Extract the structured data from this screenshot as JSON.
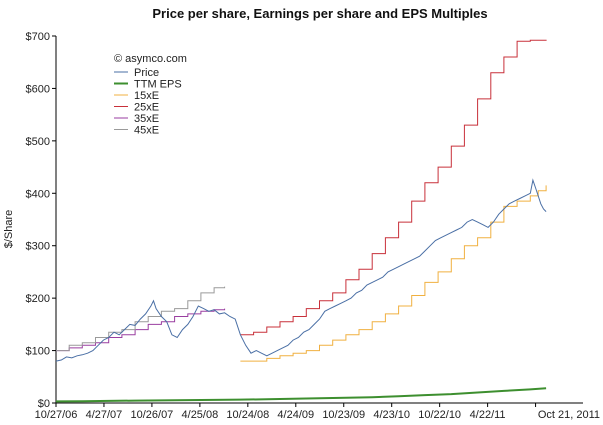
{
  "chart_data": {
    "type": "line",
    "title": "Price per share, Earnings per share and EPS Multiples",
    "ylabel": "$/Share",
    "xlabel": "",
    "copyright": "© asymco.com",
    "ylim": [
      0,
      700
    ],
    "xlim": [
      0,
      2000
    ],
    "yticks": [
      {
        "value": 0,
        "label": "$0"
      },
      {
        "value": 100,
        "label": "$100"
      },
      {
        "value": 200,
        "label": "$200"
      },
      {
        "value": 300,
        "label": "$300"
      },
      {
        "value": 400,
        "label": "$400"
      },
      {
        "value": 500,
        "label": "$500"
      },
      {
        "value": 600,
        "label": "$600"
      },
      {
        "value": 700,
        "label": "$700"
      }
    ],
    "xticks": [
      {
        "value": 0,
        "label": "10/27/06"
      },
      {
        "value": 182,
        "label": "4/27/07"
      },
      {
        "value": 364,
        "label": "10/26/07"
      },
      {
        "value": 546,
        "label": "4/25/08"
      },
      {
        "value": 728,
        "label": "10/24/08"
      },
      {
        "value": 910,
        "label": "4/24/09"
      },
      {
        "value": 1092,
        "label": "10/23/09"
      },
      {
        "value": 1274,
        "label": "4/23/10"
      },
      {
        "value": 1456,
        "label": "10/22/10"
      },
      {
        "value": 1638,
        "label": "4/22/11"
      },
      {
        "value": 1820,
        "label": "Oct 21, 2011"
      }
    ],
    "legend": "top-left",
    "grid": false,
    "series": [
      {
        "name": "Price",
        "color": "#4a6fa5",
        "points": [
          [
            0,
            80
          ],
          [
            20,
            82
          ],
          [
            40,
            88
          ],
          [
            60,
            86
          ],
          [
            80,
            90
          ],
          [
            100,
            92
          ],
          [
            120,
            95
          ],
          [
            140,
            100
          ],
          [
            160,
            110
          ],
          [
            180,
            120
          ],
          [
            200,
            125
          ],
          [
            220,
            135
          ],
          [
            240,
            130
          ],
          [
            260,
            140
          ],
          [
            280,
            150
          ],
          [
            300,
            148
          ],
          [
            320,
            160
          ],
          [
            340,
            170
          ],
          [
            360,
            185
          ],
          [
            370,
            195
          ],
          [
            380,
            180
          ],
          [
            400,
            165
          ],
          [
            420,
            155
          ],
          [
            440,
            130
          ],
          [
            460,
            125
          ],
          [
            480,
            140
          ],
          [
            500,
            150
          ],
          [
            520,
            165
          ],
          [
            540,
            185
          ],
          [
            560,
            180
          ],
          [
            580,
            175
          ],
          [
            600,
            178
          ],
          [
            620,
            170
          ],
          [
            640,
            172
          ],
          [
            660,
            165
          ],
          [
            680,
            160
          ],
          [
            700,
            130
          ],
          [
            720,
            110
          ],
          [
            740,
            95
          ],
          [
            760,
            100
          ],
          [
            780,
            95
          ],
          [
            800,
            90
          ],
          [
            820,
            95
          ],
          [
            840,
            100
          ],
          [
            860,
            105
          ],
          [
            880,
            110
          ],
          [
            900,
            120
          ],
          [
            920,
            125
          ],
          [
            940,
            135
          ],
          [
            960,
            140
          ],
          [
            980,
            150
          ],
          [
            1000,
            160
          ],
          [
            1020,
            175
          ],
          [
            1040,
            180
          ],
          [
            1060,
            185
          ],
          [
            1080,
            190
          ],
          [
            1100,
            195
          ],
          [
            1120,
            200
          ],
          [
            1140,
            210
          ],
          [
            1160,
            215
          ],
          [
            1180,
            225
          ],
          [
            1200,
            230
          ],
          [
            1220,
            235
          ],
          [
            1240,
            240
          ],
          [
            1260,
            250
          ],
          [
            1280,
            255
          ],
          [
            1300,
            260
          ],
          [
            1320,
            265
          ],
          [
            1340,
            270
          ],
          [
            1360,
            275
          ],
          [
            1380,
            280
          ],
          [
            1400,
            290
          ],
          [
            1420,
            300
          ],
          [
            1440,
            310
          ],
          [
            1460,
            315
          ],
          [
            1480,
            320
          ],
          [
            1500,
            325
          ],
          [
            1520,
            330
          ],
          [
            1540,
            335
          ],
          [
            1560,
            345
          ],
          [
            1580,
            350
          ],
          [
            1600,
            345
          ],
          [
            1620,
            340
          ],
          [
            1640,
            335
          ],
          [
            1660,
            345
          ],
          [
            1680,
            360
          ],
          [
            1700,
            370
          ],
          [
            1720,
            380
          ],
          [
            1740,
            385
          ],
          [
            1760,
            390
          ],
          [
            1780,
            395
          ],
          [
            1800,
            400
          ],
          [
            1810,
            425
          ],
          [
            1820,
            410
          ],
          [
            1830,
            395
          ],
          [
            1840,
            380
          ],
          [
            1850,
            370
          ],
          [
            1860,
            365
          ]
        ]
      },
      {
        "name": "TTM EPS",
        "color": "#3d8f2f",
        "points": [
          [
            0,
            3
          ],
          [
            100,
            3.5
          ],
          [
            200,
            4
          ],
          [
            300,
            4.5
          ],
          [
            400,
            5
          ],
          [
            500,
            5.5
          ],
          [
            600,
            6
          ],
          [
            700,
            6.5
          ],
          [
            800,
            7
          ],
          [
            900,
            8
          ],
          [
            1000,
            9
          ],
          [
            1100,
            10
          ],
          [
            1200,
            11
          ],
          [
            1300,
            13
          ],
          [
            1400,
            15
          ],
          [
            1500,
            17
          ],
          [
            1600,
            20
          ],
          [
            1700,
            23
          ],
          [
            1800,
            26
          ],
          [
            1860,
            28
          ]
        ]
      },
      {
        "name": "15xE",
        "color": "#f0b040",
        "points": [
          [
            700,
            80
          ],
          [
            800,
            85
          ],
          [
            850,
            90
          ],
          [
            900,
            95
          ],
          [
            950,
            100
          ],
          [
            1000,
            110
          ],
          [
            1050,
            120
          ],
          [
            1100,
            130
          ],
          [
            1150,
            140
          ],
          [
            1200,
            155
          ],
          [
            1250,
            170
          ],
          [
            1300,
            185
          ],
          [
            1350,
            205
          ],
          [
            1400,
            230
          ],
          [
            1450,
            250
          ],
          [
            1500,
            275
          ],
          [
            1550,
            300
          ],
          [
            1600,
            315
          ],
          [
            1650,
            345
          ],
          [
            1700,
            375
          ],
          [
            1750,
            385
          ],
          [
            1800,
            395
          ],
          [
            1830,
            405
          ],
          [
            1860,
            415
          ]
        ]
      },
      {
        "name": "25xE",
        "color": "#c8303a",
        "points": [
          [
            700,
            130
          ],
          [
            750,
            135
          ],
          [
            800,
            145
          ],
          [
            850,
            155
          ],
          [
            900,
            165
          ],
          [
            950,
            180
          ],
          [
            1000,
            195
          ],
          [
            1050,
            210
          ],
          [
            1100,
            235
          ],
          [
            1150,
            255
          ],
          [
            1200,
            285
          ],
          [
            1250,
            315
          ],
          [
            1300,
            345
          ],
          [
            1350,
            385
          ],
          [
            1400,
            420
          ],
          [
            1450,
            450
          ],
          [
            1500,
            490
          ],
          [
            1550,
            530
          ],
          [
            1600,
            580
          ],
          [
            1650,
            630
          ],
          [
            1700,
            660
          ],
          [
            1750,
            690
          ],
          [
            1800,
            692
          ],
          [
            1860,
            693
          ]
        ]
      },
      {
        "name": "35xE",
        "color": "#9a3ea0",
        "points": [
          [
            0,
            100
          ],
          [
            50,
            105
          ],
          [
            100,
            110
          ],
          [
            150,
            115
          ],
          [
            200,
            125
          ],
          [
            250,
            130
          ],
          [
            300,
            140
          ],
          [
            350,
            150
          ],
          [
            400,
            155
          ],
          [
            450,
            165
          ],
          [
            500,
            170
          ],
          [
            550,
            175
          ],
          [
            600,
            178
          ],
          [
            640,
            180
          ]
        ]
      },
      {
        "name": "45xE",
        "color": "#9a9a9a",
        "points": [
          [
            0,
            100
          ],
          [
            50,
            110
          ],
          [
            100,
            115
          ],
          [
            150,
            125
          ],
          [
            200,
            135
          ],
          [
            250,
            140
          ],
          [
            300,
            155
          ],
          [
            350,
            165
          ],
          [
            400,
            175
          ],
          [
            450,
            180
          ],
          [
            500,
            195
          ],
          [
            550,
            210
          ],
          [
            600,
            220
          ],
          [
            640,
            222
          ]
        ]
      }
    ]
  }
}
